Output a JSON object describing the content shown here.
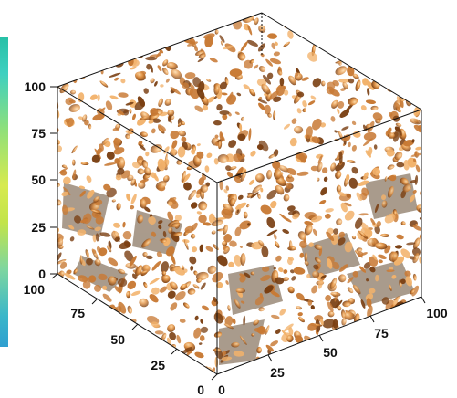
{
  "axes": {
    "vertical_ticks": [
      "100",
      "75",
      "50",
      "25",
      "0"
    ],
    "left_depth_ticks": [
      "100",
      "75",
      "50",
      "25",
      "0"
    ],
    "right_depth_ticks": [
      "0",
      "25",
      "50",
      "75",
      "100"
    ]
  },
  "colors": {
    "porous_surface_light": "#f2b26b",
    "porous_surface_mid": "#c87a35",
    "porous_surface_dark": "#7a3f12",
    "interior_shadow": "#8d7a66",
    "box_edges": "#111111"
  }
}
